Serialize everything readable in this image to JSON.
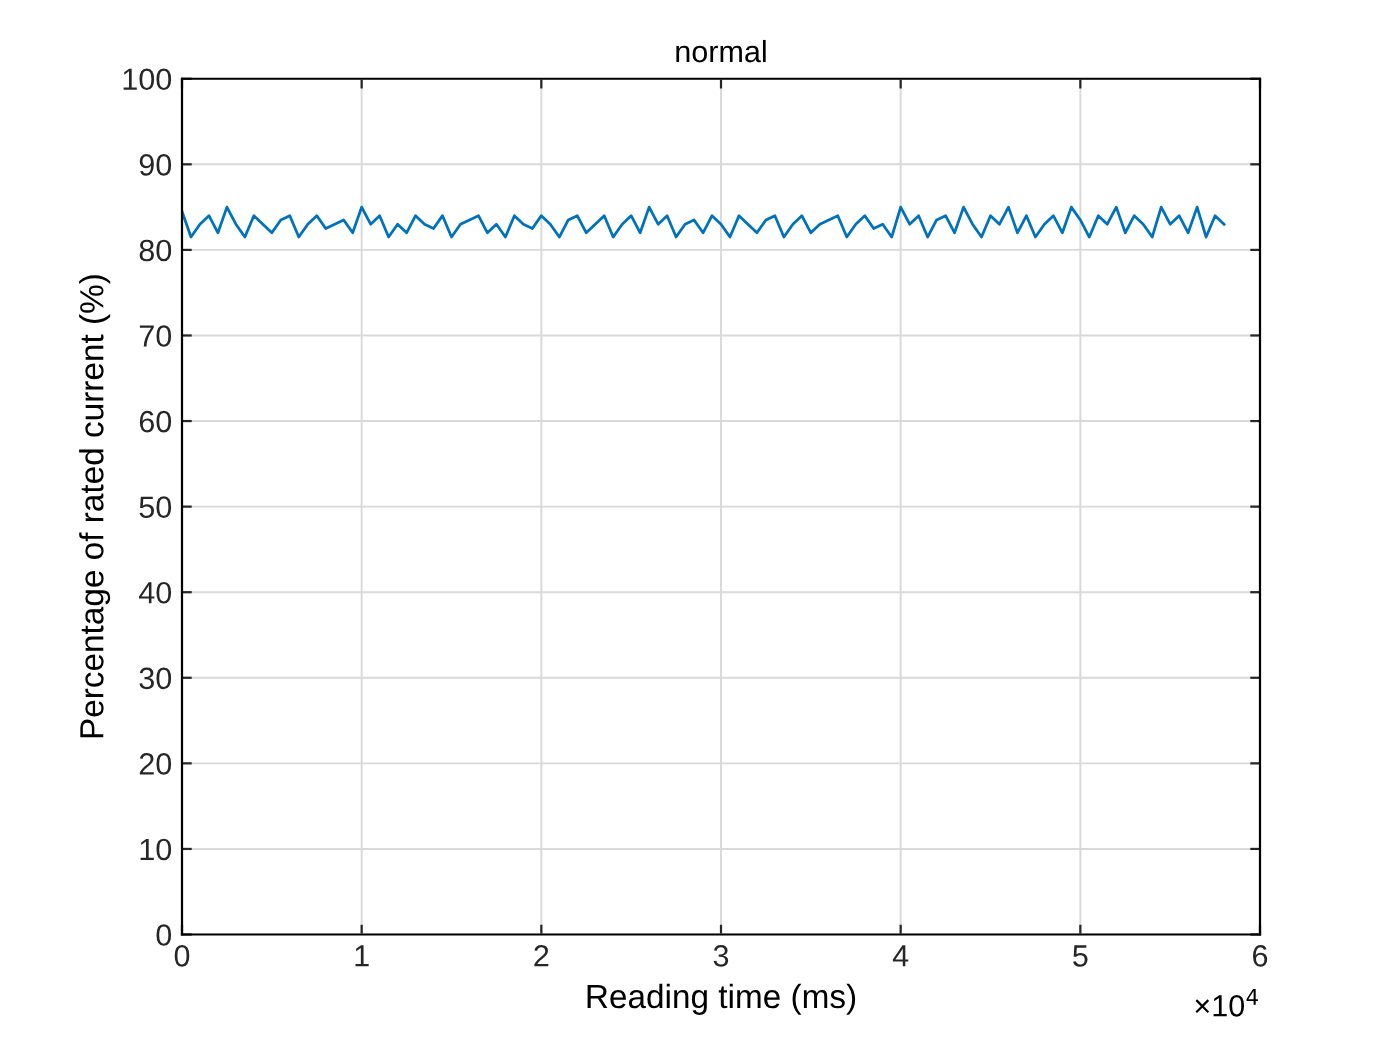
{
  "chart_data": {
    "type": "line",
    "title": "normal",
    "xlabel": "Reading time (ms)",
    "ylabel": "Percentage of rated current (%)",
    "x": [
      0,
      0.05,
      0.1,
      0.15,
      0.2,
      0.25,
      0.3,
      0.35,
      0.4,
      0.45,
      0.5,
      0.55,
      0.6,
      0.65,
      0.7,
      0.75,
      0.8,
      0.85,
      0.9,
      0.95,
      1,
      1.05,
      1.1,
      1.15,
      1.2,
      1.25,
      1.3,
      1.35,
      1.4,
      1.45,
      1.5,
      1.55,
      1.6,
      1.65,
      1.7,
      1.75,
      1.8,
      1.85,
      1.9,
      1.95,
      2,
      2.05,
      2.1,
      2.15,
      2.2,
      2.25,
      2.3,
      2.35,
      2.4,
      2.45,
      2.5,
      2.55,
      2.6,
      2.65,
      2.7,
      2.75,
      2.8,
      2.85,
      2.9,
      2.95,
      3,
      3.05,
      3.1,
      3.15,
      3.2,
      3.25,
      3.3,
      3.35,
      3.4,
      3.45,
      3.5,
      3.55,
      3.6,
      3.65,
      3.7,
      3.75,
      3.8,
      3.85,
      3.9,
      3.95,
      4,
      4.05,
      4.1,
      4.15,
      4.2,
      4.25,
      4.3,
      4.35,
      4.4,
      4.45,
      4.5,
      4.55,
      4.6,
      4.65,
      4.7,
      4.75,
      4.8,
      4.85,
      4.9,
      4.95,
      5,
      5.05,
      5.1,
      5.15,
      5.2,
      5.25,
      5.3,
      5.35,
      5.4,
      5.45,
      5.5,
      5.55,
      5.6,
      5.65,
      5.7,
      5.75,
      5.8
    ],
    "series": [
      {
        "color": "#0072bd",
        "values": [
          84.5,
          81.5,
          83,
          84,
          82,
          85,
          83,
          81.5,
          84,
          83,
          82,
          83.5,
          84,
          81.5,
          83,
          84,
          82.5,
          83,
          83.5,
          82,
          85,
          83,
          84,
          81.5,
          83,
          82,
          84,
          83,
          82.5,
          84,
          81.5,
          83,
          83.5,
          84,
          82,
          83,
          81.5,
          84,
          83,
          82.5,
          84,
          83,
          81.5,
          83.5,
          84,
          82,
          83,
          84,
          81.5,
          83,
          84,
          82,
          85,
          83,
          84,
          81.5,
          83,
          83.5,
          82,
          84,
          83,
          81.5,
          84,
          83,
          82,
          83.5,
          84,
          81.5,
          83,
          84,
          82,
          83,
          83.5,
          84,
          81.5,
          83,
          84,
          82.5,
          83,
          81.5,
          85,
          83,
          84,
          81.5,
          83.5,
          84,
          82,
          85,
          83,
          81.5,
          84,
          83,
          85,
          82,
          84,
          81.5,
          83,
          84,
          82,
          85,
          83.5,
          81.5,
          84,
          83,
          85,
          82,
          84,
          83,
          81.5,
          85,
          83,
          84,
          82,
          85,
          81.5,
          84,
          83
        ]
      }
    ],
    "xlim": [
      0,
      6
    ],
    "xticks": [
      0,
      1,
      2,
      3,
      4,
      5,
      6
    ],
    "ylim": [
      0,
      100
    ],
    "yticks": [
      0,
      10,
      20,
      30,
      40,
      50,
      60,
      70,
      80,
      90,
      100
    ],
    "grid": true,
    "line_style": "solid",
    "marker": "none",
    "annotations": [
      "×10$^{4}$"
    ]
  }
}
